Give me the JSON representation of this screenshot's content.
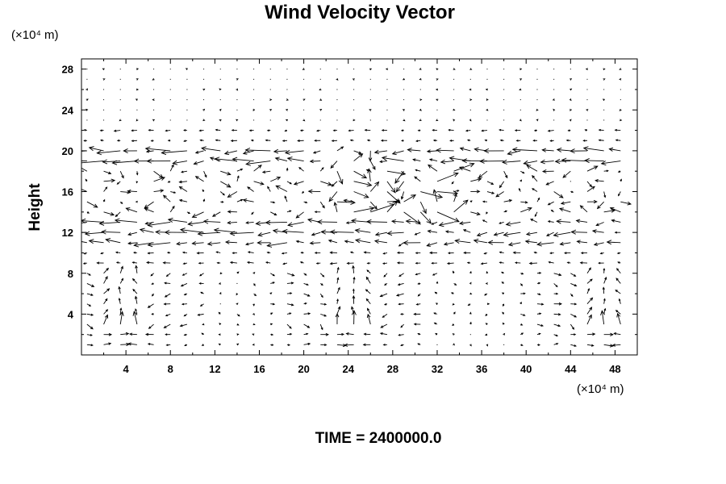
{
  "chart_data": {
    "type": "vector_field",
    "title": "Wind Velocity Vector",
    "xlabel": "",
    "ylabel": "Height",
    "x_unit": "(×10⁴ m)",
    "y_unit": "(×10⁴ m)",
    "xlim": [
      0,
      50
    ],
    "ylim": [
      0,
      29
    ],
    "xticks": [
      4,
      8,
      12,
      16,
      20,
      24,
      28,
      32,
      36,
      40,
      44,
      48
    ],
    "yticks": [
      4,
      8,
      12,
      16,
      20,
      24,
      28
    ],
    "grid": false,
    "footer": "TIME = 2400000.0",
    "field_description": "Weak near-calm flow above height 21; strong mostly westward jets at heights 19 and 11-13; mixed moderate vectors between 14 and 18; lower levels (0-9) show circulation cells centered near x = 4, 24, 47 with strong upward motion near x = 24 and x = 47."
  }
}
